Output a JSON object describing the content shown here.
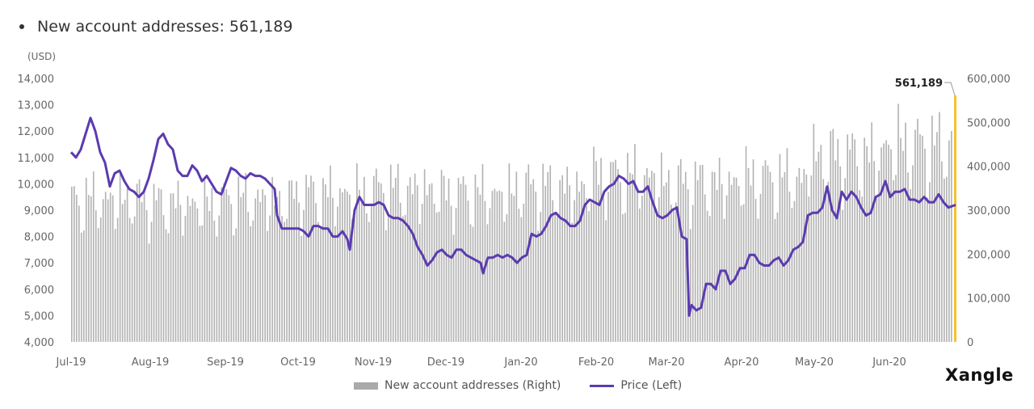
{
  "header": {
    "title": "New account addresses: 561,189"
  },
  "logo_text": "Xangle",
  "colors": {
    "bars": "#b3b3b3",
    "price_line": "#5b3bb0",
    "highlight_bar": "#f2c230",
    "axis_text": "#666666"
  },
  "chart_data": {
    "type": "bar",
    "title": "New account addresses: 561,189",
    "left_axis": {
      "unit_label": "(USD)",
      "ylim": [
        4000,
        14000
      ],
      "ticks": [
        "4,000",
        "5,000",
        "6,000",
        "7,000",
        "8,000",
        "9,000",
        "10,000",
        "11,000",
        "12,000",
        "13,000",
        "14,000"
      ]
    },
    "right_axis": {
      "ylim": [
        0,
        600000
      ],
      "ticks": [
        "0",
        "100,000",
        "200,000",
        "300,000",
        "400,000",
        "500,000",
        "600,000"
      ]
    },
    "x_ticks": [
      "Jul-19",
      "Aug-19",
      "Sep-19",
      "Oct-19",
      "Nov-19",
      "Dec-19",
      "Jan-20",
      "Feb-20",
      "Mar-20",
      "Apr-20",
      "May-20",
      "Jun-20"
    ],
    "x_range": [
      "2019-07-01",
      "2020-06-30"
    ],
    "annotation": {
      "label": "561,189",
      "value": 561189,
      "date": "2020-06-30"
    },
    "legend": {
      "position": "bottom",
      "bars_label": "New account addresses (Right)",
      "line_label": "Price (Left)"
    },
    "series": [
      {
        "name": "Price (Left)",
        "type": "line",
        "axis": "left",
        "points": [
          [
            "2019-07-01",
            11200
          ],
          [
            "2019-07-03",
            11000
          ],
          [
            "2019-07-05",
            11300
          ],
          [
            "2019-07-07",
            11900
          ],
          [
            "2019-07-09",
            12500
          ],
          [
            "2019-07-11",
            12000
          ],
          [
            "2019-07-13",
            11200
          ],
          [
            "2019-07-15",
            10800
          ],
          [
            "2019-07-17",
            9900
          ],
          [
            "2019-07-19",
            10400
          ],
          [
            "2019-07-21",
            10500
          ],
          [
            "2019-07-23",
            10100
          ],
          [
            "2019-07-25",
            9800
          ],
          [
            "2019-07-27",
            9700
          ],
          [
            "2019-07-29",
            9500
          ],
          [
            "2019-07-31",
            9700
          ],
          [
            "2019-08-02",
            10200
          ],
          [
            "2019-08-04",
            10900
          ],
          [
            "2019-08-06",
            11700
          ],
          [
            "2019-08-08",
            11900
          ],
          [
            "2019-08-10",
            11500
          ],
          [
            "2019-08-12",
            11300
          ],
          [
            "2019-08-14",
            10500
          ],
          [
            "2019-08-16",
            10300
          ],
          [
            "2019-08-18",
            10300
          ],
          [
            "2019-08-20",
            10700
          ],
          [
            "2019-08-22",
            10500
          ],
          [
            "2019-08-24",
            10100
          ],
          [
            "2019-08-26",
            10300
          ],
          [
            "2019-08-28",
            10000
          ],
          [
            "2019-08-30",
            9700
          ],
          [
            "2019-09-01",
            9600
          ],
          [
            "2019-09-03",
            10100
          ],
          [
            "2019-09-05",
            10600
          ],
          [
            "2019-09-07",
            10500
          ],
          [
            "2019-09-09",
            10300
          ],
          [
            "2019-09-11",
            10200
          ],
          [
            "2019-09-13",
            10400
          ],
          [
            "2019-09-15",
            10300
          ],
          [
            "2019-09-17",
            10300
          ],
          [
            "2019-09-19",
            10200
          ],
          [
            "2019-09-21",
            10000
          ],
          [
            "2019-09-23",
            9800
          ],
          [
            "2019-09-24",
            8800
          ],
          [
            "2019-09-26",
            8300
          ],
          [
            "2019-09-28",
            8300
          ],
          [
            "2019-10-01",
            8300
          ],
          [
            "2019-10-03",
            8300
          ],
          [
            "2019-10-05",
            8200
          ],
          [
            "2019-10-07",
            8000
          ],
          [
            "2019-10-09",
            8400
          ],
          [
            "2019-10-11",
            8400
          ],
          [
            "2019-10-13",
            8300
          ],
          [
            "2019-10-15",
            8300
          ],
          [
            "2019-10-17",
            8000
          ],
          [
            "2019-10-19",
            8000
          ],
          [
            "2019-10-21",
            8200
          ],
          [
            "2019-10-23",
            7900
          ],
          [
            "2019-10-24",
            7500
          ],
          [
            "2019-10-26",
            9000
          ],
          [
            "2019-10-28",
            9500
          ],
          [
            "2019-10-30",
            9200
          ],
          [
            "2019-11-01",
            9200
          ],
          [
            "2019-11-03",
            9200
          ],
          [
            "2019-11-05",
            9300
          ],
          [
            "2019-11-07",
            9200
          ],
          [
            "2019-11-09",
            8800
          ],
          [
            "2019-11-11",
            8700
          ],
          [
            "2019-11-13",
            8700
          ],
          [
            "2019-11-15",
            8600
          ],
          [
            "2019-11-17",
            8400
          ],
          [
            "2019-11-19",
            8100
          ],
          [
            "2019-11-21",
            7600
          ],
          [
            "2019-11-23",
            7300
          ],
          [
            "2019-11-25",
            6900
          ],
          [
            "2019-11-27",
            7100
          ],
          [
            "2019-11-29",
            7400
          ],
          [
            "2019-12-01",
            7500
          ],
          [
            "2019-12-03",
            7300
          ],
          [
            "2019-12-05",
            7200
          ],
          [
            "2019-12-07",
            7500
          ],
          [
            "2019-12-09",
            7500
          ],
          [
            "2019-12-11",
            7300
          ],
          [
            "2019-12-13",
            7200
          ],
          [
            "2019-12-15",
            7100
          ],
          [
            "2019-12-17",
            7000
          ],
          [
            "2019-12-18",
            6600
          ],
          [
            "2019-12-20",
            7200
          ],
          [
            "2019-12-22",
            7200
          ],
          [
            "2019-12-24",
            7300
          ],
          [
            "2019-12-26",
            7200
          ],
          [
            "2019-12-28",
            7300
          ],
          [
            "2019-12-30",
            7200
          ],
          [
            "2020-01-01",
            7000
          ],
          [
            "2020-01-03",
            7200
          ],
          [
            "2020-01-05",
            7300
          ],
          [
            "2020-01-07",
            8100
          ],
          [
            "2020-01-09",
            8000
          ],
          [
            "2020-01-11",
            8100
          ],
          [
            "2020-01-13",
            8400
          ],
          [
            "2020-01-15",
            8800
          ],
          [
            "2020-01-17",
            8900
          ],
          [
            "2020-01-19",
            8700
          ],
          [
            "2020-01-21",
            8600
          ],
          [
            "2020-01-23",
            8400
          ],
          [
            "2020-01-25",
            8400
          ],
          [
            "2020-01-27",
            8600
          ],
          [
            "2020-01-29",
            9200
          ],
          [
            "2020-01-31",
            9400
          ],
          [
            "2020-02-02",
            9300
          ],
          [
            "2020-02-04",
            9200
          ],
          [
            "2020-02-06",
            9700
          ],
          [
            "2020-02-08",
            9900
          ],
          [
            "2020-02-10",
            10000
          ],
          [
            "2020-02-12",
            10300
          ],
          [
            "2020-02-14",
            10200
          ],
          [
            "2020-02-16",
            10000
          ],
          [
            "2020-02-18",
            10100
          ],
          [
            "2020-02-20",
            9700
          ],
          [
            "2020-02-22",
            9700
          ],
          [
            "2020-02-24",
            9900
          ],
          [
            "2020-02-26",
            9300
          ],
          [
            "2020-02-28",
            8800
          ],
          [
            "2020-03-01",
            8700
          ],
          [
            "2020-03-03",
            8800
          ],
          [
            "2020-03-05",
            9000
          ],
          [
            "2020-03-07",
            9100
          ],
          [
            "2020-03-09",
            8000
          ],
          [
            "2020-03-11",
            7900
          ],
          [
            "2020-03-12",
            5000
          ],
          [
            "2020-03-13",
            5400
          ],
          [
            "2020-03-15",
            5200
          ],
          [
            "2020-03-17",
            5300
          ],
          [
            "2020-03-19",
            6200
          ],
          [
            "2020-03-21",
            6200
          ],
          [
            "2020-03-23",
            6000
          ],
          [
            "2020-03-25",
            6700
          ],
          [
            "2020-03-27",
            6700
          ],
          [
            "2020-03-29",
            6200
          ],
          [
            "2020-03-31",
            6400
          ],
          [
            "2020-04-02",
            6800
          ],
          [
            "2020-04-04",
            6800
          ],
          [
            "2020-04-06",
            7300
          ],
          [
            "2020-04-08",
            7300
          ],
          [
            "2020-04-10",
            7000
          ],
          [
            "2020-04-12",
            6900
          ],
          [
            "2020-04-14",
            6900
          ],
          [
            "2020-04-16",
            7100
          ],
          [
            "2020-04-18",
            7200
          ],
          [
            "2020-04-20",
            6900
          ],
          [
            "2020-04-22",
            7100
          ],
          [
            "2020-04-24",
            7500
          ],
          [
            "2020-04-26",
            7600
          ],
          [
            "2020-04-28",
            7800
          ],
          [
            "2020-04-30",
            8800
          ],
          [
            "2020-05-02",
            8900
          ],
          [
            "2020-05-04",
            8900
          ],
          [
            "2020-05-06",
            9100
          ],
          [
            "2020-05-08",
            9900
          ],
          [
            "2020-05-10",
            9000
          ],
          [
            "2020-05-12",
            8700
          ],
          [
            "2020-05-14",
            9700
          ],
          [
            "2020-05-16",
            9400
          ],
          [
            "2020-05-18",
            9700
          ],
          [
            "2020-05-20",
            9500
          ],
          [
            "2020-05-22",
            9100
          ],
          [
            "2020-05-24",
            8800
          ],
          [
            "2020-05-26",
            8900
          ],
          [
            "2020-05-28",
            9500
          ],
          [
            "2020-05-30",
            9600
          ],
          [
            "2020-06-01",
            10100
          ],
          [
            "2020-06-03",
            9500
          ],
          [
            "2020-06-05",
            9700
          ],
          [
            "2020-06-07",
            9700
          ],
          [
            "2020-06-09",
            9800
          ],
          [
            "2020-06-11",
            9400
          ],
          [
            "2020-06-13",
            9400
          ],
          [
            "2020-06-15",
            9300
          ],
          [
            "2020-06-17",
            9500
          ],
          [
            "2020-06-19",
            9300
          ],
          [
            "2020-06-21",
            9300
          ],
          [
            "2020-06-23",
            9600
          ],
          [
            "2020-06-25",
            9300
          ],
          [
            "2020-06-27",
            9100
          ],
          [
            "2020-06-30",
            9200
          ]
        ]
      },
      {
        "name": "New account addresses (Right)",
        "type": "bar",
        "axis": "right",
        "monthly_profile": [
          [
            "2019-07",
            340000
          ],
          [
            "2019-08",
            330000
          ],
          [
            "2019-09",
            340000
          ],
          [
            "2019-10",
            355000
          ],
          [
            "2019-11",
            365000
          ],
          [
            "2019-12",
            355000
          ],
          [
            "2020-01",
            370000
          ],
          [
            "2020-02",
            395000
          ],
          [
            "2020-03",
            380000
          ],
          [
            "2020-04",
            390000
          ],
          [
            "2020-05",
            445000
          ],
          [
            "2020-06",
            470000
          ]
        ]
      }
    ]
  }
}
